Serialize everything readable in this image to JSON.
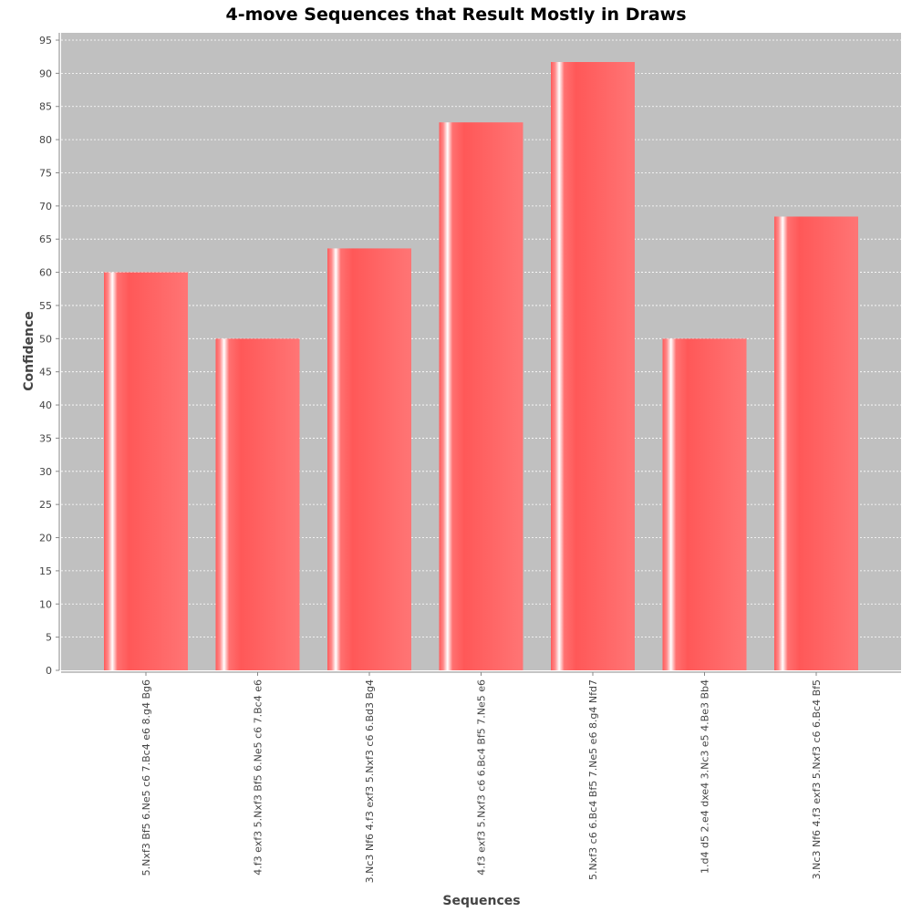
{
  "chart_data": {
    "type": "bar",
    "title": "4-move Sequences that Result Mostly in Draws",
    "xlabel": "Sequences",
    "ylabel": "Confidence",
    "ylim": [
      0,
      96
    ],
    "yticks": [
      0,
      5,
      10,
      15,
      20,
      25,
      30,
      35,
      40,
      45,
      50,
      55,
      60,
      65,
      70,
      75,
      80,
      85,
      90,
      95
    ],
    "grid": true,
    "legend": "none",
    "categories": [
      "5.Nxf3 Bf5 6.Ne5 c6 7.Bc4 e6 8.g4 Bg6",
      "4.f3 exf3 5.Nxf3 Bf5 6.Ne5 c6 7.Bc4 e6",
      "3.Nc3 Nf6 4.f3 exf3 5.Nxf3 c6 6.Bd3 Bg4",
      "4.f3 exf3 5.Nxf3 c6 6.Bc4 Bf5 7.Ne5 e6",
      "5.Nxf3 c6 6.Bc4 Bf5 7.Ne5 e6 8.g4 Nfd7",
      "1.d4 d5 2.e4 dxe4 3.Nc3 e5 4.Be3 Bb4",
      "3.Nc3 Nf6 4.f3 exf3 5.Nxf3 c6 6.Bc4 Bf5"
    ],
    "values": [
      60.0,
      50.0,
      63.6,
      82.6,
      91.7,
      50.0,
      68.4
    ],
    "colors": {
      "plot_background": "#c0c0c0",
      "bar": "#ff5a5a",
      "bar_highlight": "#ffffff",
      "gridline": "#ffffff",
      "axis": "#888888"
    }
  }
}
